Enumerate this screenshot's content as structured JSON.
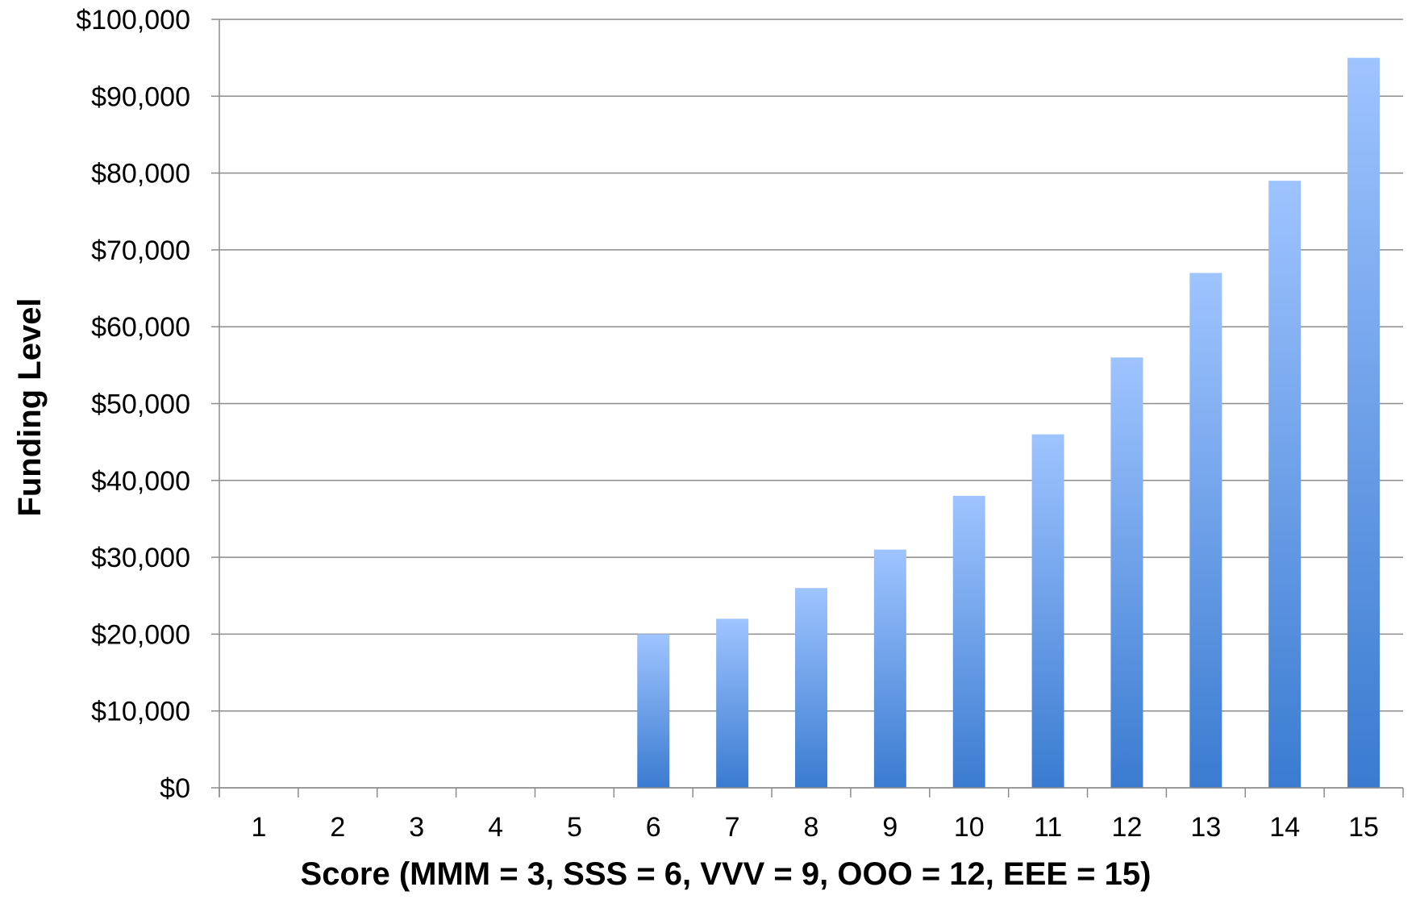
{
  "chart_data": {
    "type": "bar",
    "title": "",
    "xlabel": "Score (MMM = 3, SSS = 6, VVV = 9, OOO = 12, EEE = 15)",
    "ylabel": "Funding Level",
    "categories": [
      "1",
      "2",
      "3",
      "4",
      "5",
      "6",
      "7",
      "8",
      "9",
      "10",
      "11",
      "12",
      "13",
      "14",
      "15"
    ],
    "values": [
      0,
      0,
      0,
      0,
      0,
      20000,
      22000,
      26000,
      31000,
      38000,
      46000,
      56000,
      67000,
      79000,
      95000
    ],
    "ylim": [
      0,
      100000
    ],
    "yticks": [
      0,
      10000,
      20000,
      30000,
      40000,
      50000,
      60000,
      70000,
      80000,
      90000,
      100000
    ],
    "ytick_labels": [
      "$0",
      "$10,000",
      "$20,000",
      "$30,000",
      "$40,000",
      "$50,000",
      "$60,000",
      "$70,000",
      "$80,000",
      "$90,000",
      "$100,000"
    ],
    "grid": true,
    "legend": "none",
    "colors": {
      "bar_top": "#9fc4ff",
      "bar_bottom": "#3a7bd0",
      "gridline": "#8c8c8c",
      "axis": "#8c8c8c"
    }
  }
}
